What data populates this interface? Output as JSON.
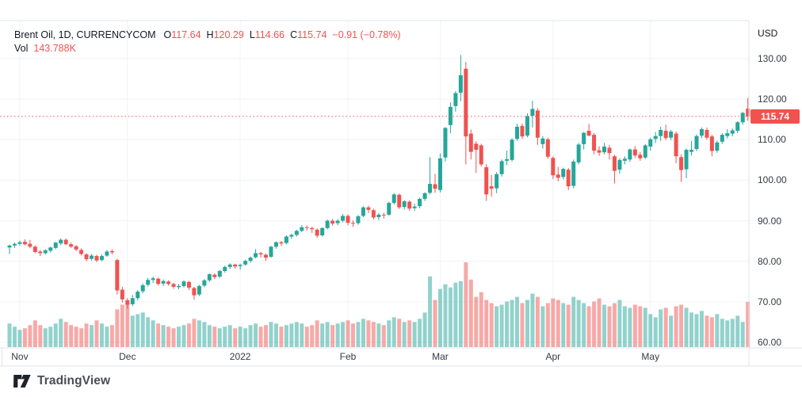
{
  "header": {
    "symbol": "Brent Oil, 1D, CURRENCYCOM",
    "ohlc": [
      {
        "label": "O",
        "value": "117.64"
      },
      {
        "label": "H",
        "value": "120.29"
      },
      {
        "label": "L",
        "value": "114.66"
      },
      {
        "label": "C",
        "value": "115.74"
      }
    ],
    "change": "−0.91 (−0.78%)",
    "vol_label": "Vol",
    "vol_value": "143.788K"
  },
  "price_axis": {
    "currency": "USD",
    "tick_labels": [
      "130.00",
      "120.00",
      "110.00",
      "100.00",
      "90.00",
      "80.00",
      "70.00",
      "60.00"
    ],
    "last_price": "115.74"
  },
  "footer": {
    "brand": "TradingView"
  },
  "colors": {
    "up": "#26a69a",
    "down": "#ef5350",
    "vol_up": "rgba(38,166,154,0.5)",
    "vol_down": "rgba(239,83,80,0.5)",
    "grid": "#f0f3fa",
    "axis_line": "#e0e3eb",
    "text_dark": "#131722",
    "text_axis": "#363a45",
    "accent_red": "#ef5350",
    "background": "#ffffff"
  },
  "chart_data": {
    "type": "candlestick",
    "title": "Brent Oil, 1D, CURRENCYCOM",
    "ylabel": "USD",
    "price_ticks": [
      130,
      120,
      110,
      100,
      90,
      80,
      70,
      60
    ],
    "y_visible_range": [
      58,
      133
    ],
    "last_price": 115.74,
    "time_ticks": [
      {
        "label": "Nov",
        "index": 2
      },
      {
        "label": "Dec",
        "index": 23
      },
      {
        "label": "2022",
        "index": 45
      },
      {
        "label": "Feb",
        "index": 66
      },
      {
        "label": "Mar",
        "index": 84
      },
      {
        "label": "Apr",
        "index": 106
      },
      {
        "label": "May",
        "index": 125
      }
    ],
    "candles": [
      [
        83.4,
        84.1,
        81.8,
        83.9
      ],
      [
        83.9,
        84.6,
        83.3,
        84.3
      ],
      [
        84.3,
        85.1,
        83.9,
        84.7
      ],
      [
        84.8,
        85.4,
        83.9,
        84.2
      ],
      [
        84.3,
        85.3,
        83.2,
        83.6
      ],
      [
        83.6,
        83.9,
        82.0,
        82.3
      ],
      [
        82.4,
        82.8,
        81.3,
        82.0
      ],
      [
        82.0,
        83.0,
        81.7,
        82.7
      ],
      [
        82.6,
        83.6,
        82.2,
        83.4
      ],
      [
        83.3,
        84.8,
        83.0,
        84.6
      ],
      [
        84.4,
        85.6,
        84.0,
        85.3
      ],
      [
        85.3,
        85.6,
        84.0,
        84.2
      ],
      [
        84.2,
        84.6,
        83.3,
        83.6
      ],
      [
        83.7,
        84.0,
        82.5,
        82.9
      ],
      [
        82.8,
        83.2,
        81.4,
        81.8
      ],
      [
        81.7,
        82.0,
        80.0,
        80.5
      ],
      [
        80.6,
        81.8,
        80.2,
        81.4
      ],
      [
        81.3,
        81.6,
        79.8,
        80.2
      ],
      [
        80.3,
        81.7,
        80.0,
        81.3
      ],
      [
        81.4,
        82.8,
        81.1,
        82.4
      ],
      [
        82.5,
        82.9,
        81.7,
        82.2
      ],
      [
        80.3,
        80.6,
        71.8,
        72.8
      ],
      [
        73.0,
        73.7,
        69.8,
        70.6
      ],
      [
        70.4,
        70.9,
        68.3,
        69.3
      ],
      [
        69.4,
        71.7,
        68.9,
        70.9
      ],
      [
        70.9,
        72.9,
        70.3,
        72.5
      ],
      [
        72.6,
        74.5,
        72.1,
        74.1
      ],
      [
        74.2,
        75.9,
        73.8,
        75.4
      ],
      [
        75.4,
        76.2,
        74.7,
        75.8
      ],
      [
        75.7,
        76.0,
        74.0,
        74.4
      ],
      [
        74.5,
        75.5,
        73.9,
        75.1
      ],
      [
        75.0,
        75.3,
        74.0,
        74.4
      ],
      [
        74.4,
        74.7,
        73.2,
        73.7
      ],
      [
        73.6,
        74.4,
        73.1,
        73.9
      ],
      [
        73.9,
        75.3,
        73.5,
        75.0
      ],
      [
        74.9,
        75.2,
        72.9,
        73.5
      ],
      [
        73.4,
        73.7,
        70.5,
        71.6
      ],
      [
        71.8,
        74.2,
        71.4,
        73.9
      ],
      [
        74.0,
        75.6,
        73.6,
        75.3
      ],
      [
        75.3,
        77.0,
        74.9,
        76.8
      ],
      [
        76.7,
        77.0,
        75.6,
        76.1
      ],
      [
        76.2,
        77.9,
        75.9,
        77.6
      ],
      [
        77.6,
        78.9,
        77.2,
        78.6
      ],
      [
        78.6,
        79.5,
        78.1,
        79.2
      ],
      [
        79.2,
        79.4,
        78.2,
        78.7
      ],
      [
        78.8,
        79.4,
        77.9,
        79.1
      ],
      [
        79.2,
        80.4,
        78.9,
        80.1
      ],
      [
        80.1,
        81.2,
        79.6,
        80.9
      ],
      [
        81.0,
        83.0,
        80.7,
        82.0
      ],
      [
        82.0,
        82.3,
        80.9,
        81.7
      ],
      [
        81.6,
        81.9,
        80.1,
        80.9
      ],
      [
        81.1,
        83.8,
        80.9,
        83.6
      ],
      [
        83.6,
        84.9,
        83.1,
        84.7
      ],
      [
        84.7,
        85.0,
        83.8,
        84.4
      ],
      [
        84.5,
        86.4,
        84.2,
        86.1
      ],
      [
        86.1,
        86.8,
        85.5,
        86.5
      ],
      [
        86.5,
        87.8,
        86.1,
        87.5
      ],
      [
        87.5,
        88.9,
        87.2,
        88.4
      ],
      [
        88.4,
        88.8,
        87.6,
        88.3
      ],
      [
        88.2,
        88.5,
        87.0,
        87.9
      ],
      [
        87.8,
        88.1,
        85.8,
        86.3
      ],
      [
        86.4,
        88.4,
        86.1,
        88.2
      ],
      [
        88.2,
        90.3,
        87.9,
        90.0
      ],
      [
        90.0,
        90.4,
        88.8,
        89.3
      ],
      [
        89.4,
        90.4,
        88.9,
        90.0
      ],
      [
        90.0,
        91.7,
        89.6,
        91.2
      ],
      [
        91.2,
        91.6,
        88.9,
        89.5
      ],
      [
        89.5,
        90.1,
        88.5,
        89.3
      ],
      [
        89.4,
        91.4,
        89.0,
        91.1
      ],
      [
        91.2,
        93.6,
        90.9,
        93.3
      ],
      [
        93.3,
        93.7,
        91.9,
        92.7
      ],
      [
        92.6,
        93.0,
        90.3,
        90.8
      ],
      [
        90.9,
        91.9,
        90.2,
        91.5
      ],
      [
        91.5,
        92.0,
        90.5,
        91.4
      ],
      [
        91.5,
        94.7,
        91.2,
        94.4
      ],
      [
        94.4,
        96.8,
        94.0,
        96.5
      ],
      [
        96.4,
        96.7,
        92.9,
        93.3
      ],
      [
        93.4,
        95.1,
        92.8,
        94.8
      ],
      [
        94.7,
        95.0,
        92.5,
        93.0
      ],
      [
        93.1,
        94.2,
        92.4,
        93.5
      ],
      [
        93.6,
        95.7,
        93.1,
        95.4
      ],
      [
        95.4,
        97.0,
        94.9,
        96.8
      ],
      [
        96.9,
        105.7,
        96.5,
        99.1
      ],
      [
        99.0,
        101.6,
        96.9,
        97.9
      ],
      [
        97.6,
        106.6,
        97.0,
        105.4
      ],
      [
        105.6,
        113.1,
        104.6,
        112.9
      ],
      [
        113.6,
        119.2,
        111.6,
        118.1
      ],
      [
        118.3,
        122.0,
        116.9,
        121.5
      ],
      [
        121.6,
        130.9,
        119.5,
        125.9
      ],
      [
        127.5,
        129.2,
        103.9,
        110.8
      ],
      [
        111.5,
        112.5,
        105.1,
        107.0
      ],
      [
        109.0,
        109.6,
        101.8,
        107.5
      ],
      [
        108.6,
        109.0,
        103.4,
        103.9
      ],
      [
        103.2,
        104.0,
        94.9,
        96.5
      ],
      [
        98.5,
        101.3,
        96.0,
        97.9
      ],
      [
        98.0,
        102.0,
        96.8,
        101.5
      ],
      [
        101.5,
        105.1,
        100.9,
        104.7
      ],
      [
        104.8,
        107.3,
        103.7,
        105.2
      ],
      [
        105.0,
        110.4,
        104.6,
        110.0
      ],
      [
        110.2,
        113.9,
        109.7,
        113.2
      ],
      [
        113.4,
        114.0,
        110.2,
        110.8
      ],
      [
        111.0,
        116.5,
        110.6,
        115.8
      ],
      [
        115.9,
        119.6,
        113.0,
        117.6
      ],
      [
        117.2,
        117.8,
        108.7,
        110.5
      ],
      [
        108.9,
        110.9,
        107.8,
        110.3
      ],
      [
        110.1,
        110.5,
        105.3,
        105.8
      ],
      [
        105.5,
        105.9,
        100.3,
        101.2
      ],
      [
        101.4,
        103.3,
        99.7,
        100.6
      ],
      [
        100.8,
        103.1,
        100.2,
        102.8
      ],
      [
        102.6,
        103.0,
        97.6,
        98.5
      ],
      [
        98.6,
        105.1,
        98.0,
        104.6
      ],
      [
        104.4,
        109.2,
        103.9,
        108.8
      ],
      [
        108.9,
        111.9,
        107.6,
        111.7
      ],
      [
        112.2,
        113.9,
        110.9,
        111.0
      ],
      [
        111.2,
        111.6,
        106.4,
        107.3
      ],
      [
        107.4,
        108.4,
        106.0,
        106.8
      ],
      [
        106.9,
        109.2,
        106.4,
        108.3
      ],
      [
        108.0,
        108.7,
        105.1,
        106.7
      ],
      [
        105.9,
        106.3,
        99.2,
        102.3
      ],
      [
        102.6,
        105.4,
        101.6,
        105.0
      ],
      [
        104.8,
        105.9,
        103.9,
        105.3
      ],
      [
        105.1,
        107.8,
        104.5,
        107.6
      ],
      [
        107.6,
        108.4,
        105.5,
        106.1
      ],
      [
        106.3,
        107.0,
        104.8,
        105.4
      ],
      [
        105.6,
        108.9,
        105.2,
        108.6
      ],
      [
        108.3,
        110.5,
        107.3,
        110.1
      ],
      [
        110.2,
        111.9,
        109.2,
        110.9
      ],
      [
        110.9,
        113.2,
        109.7,
        112.4
      ],
      [
        112.2,
        113.7,
        109.9,
        110.4
      ],
      [
        110.5,
        112.4,
        109.9,
        112.0
      ],
      [
        111.5,
        112.0,
        104.2,
        105.9
      ],
      [
        105.7,
        106.4,
        99.6,
        102.5
      ],
      [
        102.7,
        107.8,
        100.5,
        107.5
      ],
      [
        107.0,
        109.7,
        106.1,
        107.5
      ],
      [
        107.7,
        111.3,
        107.2,
        110.9
      ],
      [
        111.0,
        113.0,
        110.4,
        112.6
      ],
      [
        112.4,
        113.0,
        110.0,
        110.5
      ],
      [
        110.8,
        111.2,
        105.9,
        107.2
      ],
      [
        107.3,
        109.8,
        106.8,
        109.3
      ],
      [
        109.5,
        111.6,
        109.0,
        111.2
      ],
      [
        110.9,
        112.6,
        110.3,
        111.6
      ],
      [
        111.5,
        112.8,
        110.8,
        112.3
      ],
      [
        112.2,
        114.6,
        111.6,
        114.3
      ],
      [
        114.3,
        116.9,
        113.7,
        116.6
      ],
      [
        117.64,
        120.29,
        114.66,
        115.74
      ]
    ],
    "volumes": [
      75,
      65,
      55,
      60,
      70,
      85,
      70,
      60,
      65,
      75,
      90,
      80,
      70,
      65,
      60,
      75,
      70,
      85,
      75,
      65,
      70,
      120,
      135,
      140,
      100,
      105,
      110,
      95,
      85,
      75,
      70,
      65,
      60,
      65,
      70,
      75,
      90,
      85,
      80,
      70,
      65,
      60,
      65,
      70,
      60,
      65,
      60,
      70,
      75,
      65,
      70,
      80,
      75,
      65,
      70,
      75,
      80,
      75,
      65,
      70,
      85,
      75,
      80,
      70,
      75,
      80,
      85,
      75,
      80,
      90,
      85,
      80,
      75,
      70,
      85,
      95,
      90,
      80,
      85,
      80,
      90,
      110,
      225,
      150,
      185,
      200,
      190,
      205,
      210,
      270,
      215,
      160,
      175,
      150,
      140,
      130,
      135,
      145,
      150,
      160,
      140,
      150,
      170,
      160,
      130,
      140,
      155,
      150,
      140,
      135,
      160,
      150,
      140,
      130,
      145,
      155,
      135,
      130,
      140,
      150,
      130,
      125,
      135,
      130,
      125,
      105,
      95,
      120,
      125,
      100,
      130,
      135,
      125,
      110,
      105,
      115,
      100,
      95,
      105,
      90,
      85,
      90,
      100,
      80,
      143.788
    ],
    "volume_unit": "K",
    "last_volume": 143.788
  }
}
